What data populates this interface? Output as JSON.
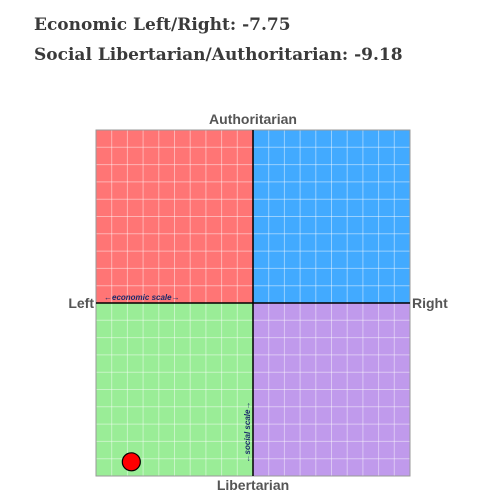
{
  "scores": {
    "economic": "Economic Left/Right: -7.75",
    "social": "Social Libertarian/Authoritarian: -9.18"
  },
  "chart_data": {
    "type": "scatter",
    "title": "",
    "xlabel_left": "Left",
    "xlabel_right": "Right",
    "ylabel_top": "Authoritarian",
    "ylabel_bottom": "Libertarian",
    "economic_scale_label": "←economic scale→",
    "social_scale_label": "←social scale→",
    "xlim": [
      -10,
      10
    ],
    "ylim": [
      -10,
      10
    ],
    "grid": true,
    "quadrants": {
      "authoritarian_left": "#ff7575",
      "authoritarian_right": "#42aaff",
      "libertarian_left": "#9aed97",
      "libertarian_right": "#c09aec"
    },
    "points": [
      {
        "x": -7.75,
        "y": -9.18,
        "color": "#ff0000"
      }
    ]
  }
}
